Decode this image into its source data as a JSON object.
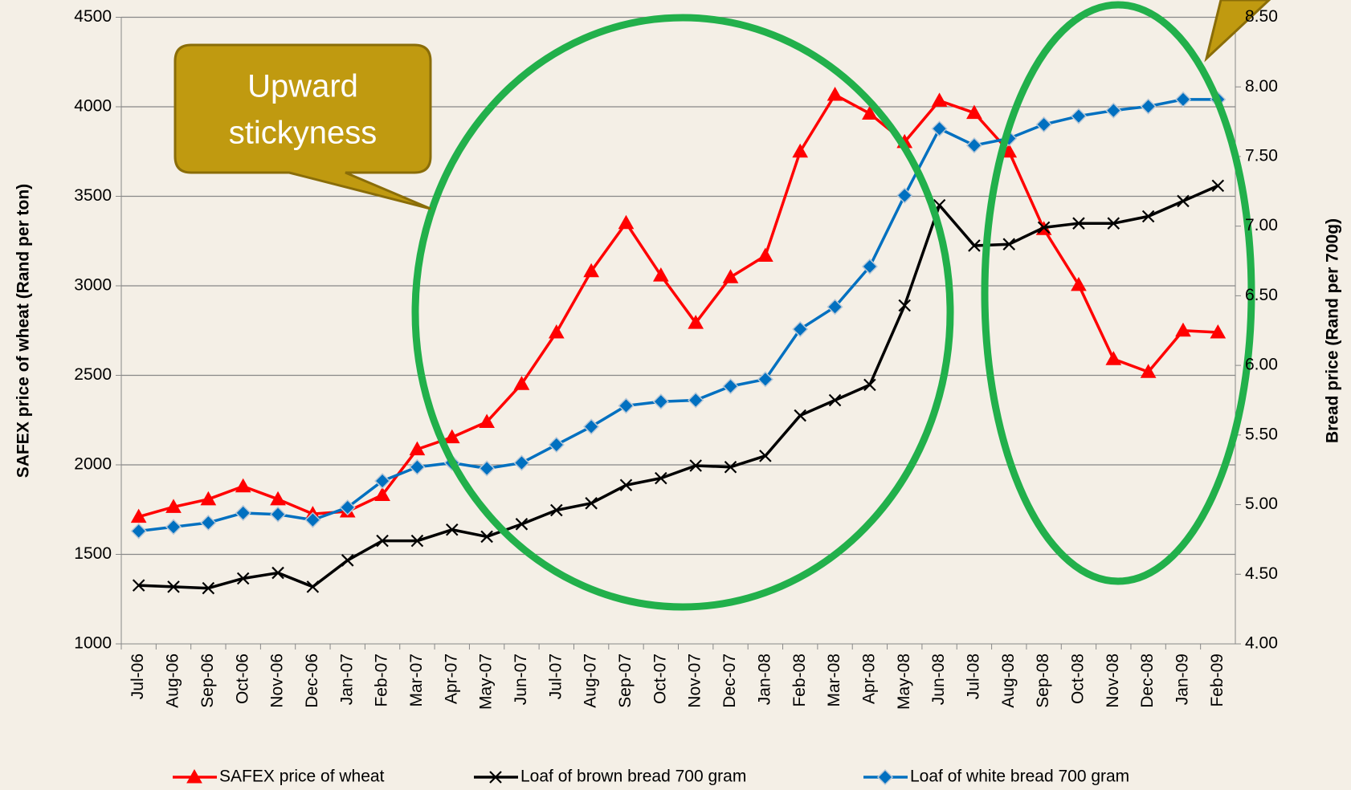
{
  "chart_data": {
    "type": "line",
    "categories": [
      "Jul-06",
      "Aug-06",
      "Sep-06",
      "Oct-06",
      "Nov-06",
      "Dec-06",
      "Jan-07",
      "Feb-07",
      "Mar-07",
      "Apr-07",
      "May-07",
      "Jun-07",
      "Jul-07",
      "Aug-07",
      "Sep-07",
      "Oct-07",
      "Nov-07",
      "Dec-07",
      "Jan-08",
      "Feb-08",
      "Mar-08",
      "Apr-08",
      "May-08",
      "Jun-08",
      "Jul-08",
      "Aug-08",
      "Sep-08",
      "Oct-08",
      "Nov-08",
      "Dec-08",
      "Jan-09",
      "Feb-09"
    ],
    "series": [
      {
        "name": "SAFEX price of wheat",
        "color": "#ff0000",
        "marker": "triangle",
        "axis": "y",
        "values": [
          1710,
          1765,
          1808,
          1880,
          1808,
          1726,
          1740,
          1832,
          2087,
          2154,
          2240,
          2452,
          2740,
          3082,
          3351,
          3058,
          2793,
          3048,
          3168,
          3750,
          4067,
          3962,
          3803,
          4034,
          3966,
          3750,
          3317,
          3005,
          2591,
          2519,
          2750,
          2740
        ]
      },
      {
        "name": "Loaf of brown bread 700 gram",
        "color": "#000000",
        "marker": "x",
        "axis": "y2",
        "values": [
          4.42,
          4.41,
          4.4,
          4.47,
          4.51,
          4.41,
          4.6,
          4.74,
          4.74,
          4.82,
          4.77,
          4.86,
          4.96,
          5.01,
          5.14,
          5.19,
          5.28,
          5.27,
          5.35,
          5.64,
          5.75,
          5.86,
          6.43,
          7.15,
          6.86,
          6.87,
          6.99,
          7.02,
          7.02,
          7.07,
          7.18,
          7.29
        ]
      },
      {
        "name": "Loaf of white bread 700 gram",
        "color": "#0070c0",
        "marker": "diamond",
        "axis": "y2",
        "values": [
          4.81,
          4.84,
          4.87,
          4.94,
          4.93,
          4.89,
          4.98,
          5.17,
          5.27,
          5.3,
          5.26,
          5.3,
          5.43,
          5.56,
          5.71,
          5.74,
          5.75,
          5.85,
          5.9,
          6.26,
          6.42,
          6.71,
          7.22,
          7.7,
          7.58,
          7.63,
          7.73,
          7.79,
          7.83,
          7.86,
          7.91,
          7.91
        ]
      }
    ],
    "y_label": "SAFEX price of wheat (Rand per ton)",
    "y2_label": "Bread price (Rand per 700g)",
    "ylim": [
      1000,
      4500
    ],
    "yticks": [
      1000,
      1500,
      2000,
      2500,
      3000,
      3500,
      4000,
      4500
    ],
    "y2lim": [
      4,
      8.5
    ],
    "y2ticks": [
      {
        "value": 4,
        "label": "4.00"
      },
      {
        "value": 4.5,
        "label": "4.50"
      },
      {
        "value": 5,
        "label": "5.00"
      },
      {
        "value": 5.5,
        "label": "5.50"
      },
      {
        "value": 6,
        "label": "6.00"
      },
      {
        "value": 6.5,
        "label": "6.50"
      },
      {
        "value": 7,
        "label": "7.00"
      },
      {
        "value": 7.5,
        "label": "7.50"
      },
      {
        "value": 8,
        "label": "8.00"
      },
      {
        "value": 8.5,
        "label": "8.50"
      }
    ],
    "grid": true,
    "legend": "bottom",
    "annotations": [
      {
        "text": [
          "Upward",
          "stickyness"
        ]
      }
    ]
  }
}
